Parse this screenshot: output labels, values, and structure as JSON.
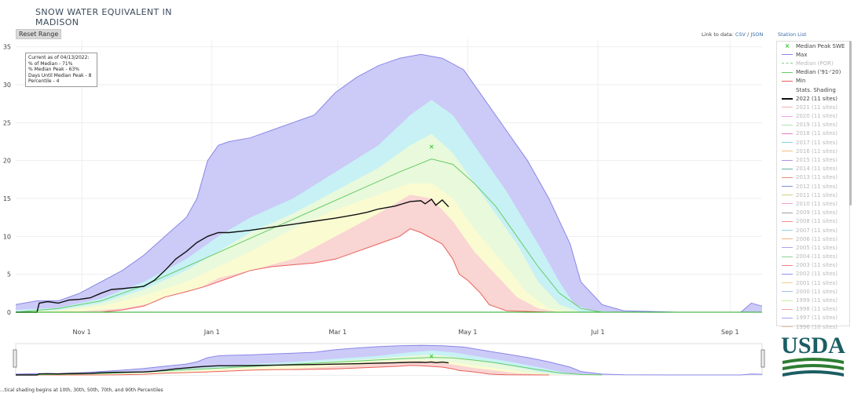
{
  "page": {
    "title_line1": "SNOW WATER EQUIVALENT IN",
    "title_line2": "MADISON",
    "reset_label": "Reset Range",
    "link_prefix": "Link to data:",
    "link_csv": "CSV",
    "link_sep": "/",
    "link_json": "JSON",
    "station_list": "Station List",
    "info": [
      "Current as of 04/13/2022:",
      "% of Median - 71%",
      "% Median Peak - 63%",
      "Days Until Median Peak - 8",
      "Percentile - 4"
    ],
    "footnote": "...tical shading begins at 10th, 30th, 50th, 70th, and 90th Percentiles",
    "logo_text": "USDA"
  },
  "legend": [
    {
      "label": "Median Peak SWE",
      "color": "#33cc33",
      "kind": "marker",
      "dim": false
    },
    {
      "label": "Max",
      "color": "#8a87e6",
      "kind": "line",
      "dim": false
    },
    {
      "label": "Median (POR)",
      "color": "#88cc88",
      "kind": "dash",
      "dim": true
    },
    {
      "label": "Median ('91-'20)",
      "color": "#66cc66",
      "kind": "line",
      "dim": false
    },
    {
      "label": "Min",
      "color": "#e8605a",
      "kind": "line",
      "dim": false
    },
    {
      "label": "Stats. Shading",
      "color": "#ffffff",
      "kind": "none",
      "dim": false
    },
    {
      "label": "2022 (11 sites)",
      "color": "#111111",
      "kind": "thick",
      "dim": false
    },
    {
      "label": "2021 (11 sites)",
      "color": "#f0b0b0",
      "kind": "line",
      "dim": true
    },
    {
      "label": "2020 (11 sites)",
      "color": "#f0a0f0",
      "kind": "line",
      "dim": true
    },
    {
      "label": "2019 (11 sites)",
      "color": "#b0e0b0",
      "kind": "line",
      "dim": true
    },
    {
      "label": "2018 (11 sites)",
      "color": "#e080c0",
      "kind": "line",
      "dim": true
    },
    {
      "label": "2017 (11 sites)",
      "color": "#80d0e0",
      "kind": "line",
      "dim": true
    },
    {
      "label": "2016 (11 sites)",
      "color": "#f0c080",
      "kind": "line",
      "dim": true
    },
    {
      "label": "2015 (11 sites)",
      "color": "#b090e0",
      "kind": "line",
      "dim": true
    },
    {
      "label": "2014 (11 sites)",
      "color": "#60b0a0",
      "kind": "line",
      "dim": true
    },
    {
      "label": "2013 (11 sites)",
      "color": "#e09070",
      "kind": "line",
      "dim": true
    },
    {
      "label": "2012 (11 sites)",
      "color": "#8090d0",
      "kind": "line",
      "dim": true
    },
    {
      "label": "2011 (11 sites)",
      "color": "#d0d080",
      "kind": "line",
      "dim": true
    },
    {
      "label": "2010 (11 sites)",
      "color": "#f0a0d0",
      "kind": "line",
      "dim": true
    },
    {
      "label": "2009 (11 sites)",
      "color": "#a0a0a0",
      "kind": "line",
      "dim": true
    },
    {
      "label": "2008 (11 sites)",
      "color": "#f09090",
      "kind": "line",
      "dim": true
    },
    {
      "label": "2007 (11 sites)",
      "color": "#90d0f0",
      "kind": "line",
      "dim": true
    },
    {
      "label": "2006 (11 sites)",
      "color": "#f0b080",
      "kind": "line",
      "dim": true
    },
    {
      "label": "2005 (11 sites)",
      "color": "#b0a0f0",
      "kind": "line",
      "dim": true
    },
    {
      "label": "2004 (11 sites)",
      "color": "#90d090",
      "kind": "line",
      "dim": true
    },
    {
      "label": "2003 (11 sites)",
      "color": "#f08080",
      "kind": "line",
      "dim": true
    },
    {
      "label": "2002 (11 sites)",
      "color": "#9090f0",
      "kind": "line",
      "dim": true
    },
    {
      "label": "2001 (11 sites)",
      "color": "#f0d090",
      "kind": "line",
      "dim": true
    },
    {
      "label": "2000 (11 sites)",
      "color": "#a0c0f0",
      "kind": "line",
      "dim": true
    },
    {
      "label": "1999 (11 sites)",
      "color": "#c0f0a0",
      "kind": "line",
      "dim": true
    },
    {
      "label": "1998 (11 sites)",
      "color": "#f0a0a0",
      "kind": "line",
      "dim": true
    },
    {
      "label": "1997 (11 sites)",
      "color": "#a0a0f0",
      "kind": "line",
      "dim": true
    },
    {
      "label": "1996 (10 sites)",
      "color": "#f0c0a0",
      "kind": "line",
      "dim": true
    }
  ],
  "chart_data": {
    "type": "area",
    "title": "SNOW WATER EQUIVALENT IN MADISON",
    "ylim": [
      0,
      36
    ],
    "yticks": [
      0,
      5,
      10,
      15,
      20,
      25,
      30,
      35
    ],
    "xlim": [
      0,
      350
    ],
    "x_unit": "days since Oct 1",
    "xticks": [
      {
        "day": 31,
        "label": "Nov 1"
      },
      {
        "day": 92,
        "label": "Jan 1"
      },
      {
        "day": 151,
        "label": "Mar 1"
      },
      {
        "day": 212,
        "label": "May 1"
      },
      {
        "day": 273,
        "label": "Jul 1"
      },
      {
        "day": 335,
        "label": "Sep 1"
      }
    ],
    "bands": [
      {
        "name": "Max",
        "fill": "#cccaf7",
        "stroke": "#8a87e6",
        "points": [
          [
            0,
            1
          ],
          [
            10,
            1.5
          ],
          [
            20,
            1.5
          ],
          [
            30,
            2.5
          ],
          [
            40,
            4
          ],
          [
            50,
            5.5
          ],
          [
            60,
            7.5
          ],
          [
            70,
            10
          ],
          [
            80,
            12.5
          ],
          [
            85,
            15
          ],
          [
            90,
            20
          ],
          [
            95,
            22
          ],
          [
            100,
            22.5
          ],
          [
            110,
            23
          ],
          [
            120,
            24
          ],
          [
            130,
            25
          ],
          [
            140,
            26
          ],
          [
            150,
            29
          ],
          [
            160,
            31
          ],
          [
            170,
            32.5
          ],
          [
            180,
            33.5
          ],
          [
            190,
            34
          ],
          [
            200,
            33.5
          ],
          [
            210,
            32
          ],
          [
            220,
            28
          ],
          [
            230,
            24
          ],
          [
            240,
            20
          ],
          [
            250,
            15
          ],
          [
            260,
            9
          ],
          [
            265,
            4
          ],
          [
            275,
            1
          ],
          [
            285,
            0.2
          ],
          [
            310,
            0
          ],
          [
            340,
            0
          ],
          [
            345,
            1.2
          ],
          [
            350,
            0.8
          ]
        ]
      },
      {
        "name": "90th",
        "fill": "#c7f1f5",
        "stroke": "none",
        "points": [
          [
            0,
            0.3
          ],
          [
            20,
            0.6
          ],
          [
            40,
            1.8
          ],
          [
            60,
            4
          ],
          [
            80,
            7
          ],
          [
            95,
            10
          ],
          [
            110,
            12.5
          ],
          [
            130,
            15
          ],
          [
            150,
            18.5
          ],
          [
            170,
            22
          ],
          [
            185,
            26
          ],
          [
            195,
            28
          ],
          [
            205,
            26
          ],
          [
            215,
            22
          ],
          [
            230,
            16
          ],
          [
            245,
            9
          ],
          [
            255,
            4
          ],
          [
            262,
            1
          ],
          [
            270,
            0.2
          ],
          [
            285,
            0
          ]
        ]
      },
      {
        "name": "70th",
        "fill": "#e9f9dc",
        "stroke": "none",
        "points": [
          [
            0,
            0.1
          ],
          [
            20,
            0.3
          ],
          [
            40,
            1.2
          ],
          [
            60,
            3
          ],
          [
            80,
            5.5
          ],
          [
            95,
            8
          ],
          [
            110,
            10.5
          ],
          [
            130,
            13
          ],
          [
            150,
            16
          ],
          [
            170,
            19
          ],
          [
            185,
            22
          ],
          [
            195,
            23.5
          ],
          [
            205,
            21
          ],
          [
            220,
            15
          ],
          [
            235,
            9
          ],
          [
            245,
            4
          ],
          [
            255,
            1
          ],
          [
            265,
            0
          ]
        ]
      },
      {
        "name": "Median",
        "fill": "#fbfbd2",
        "stroke": "none",
        "points": [
          [
            0,
            0
          ],
          [
            20,
            0.2
          ],
          [
            40,
            0.8
          ],
          [
            60,
            2.2
          ],
          [
            80,
            4
          ],
          [
            95,
            6
          ],
          [
            110,
            8
          ],
          [
            130,
            11
          ],
          [
            150,
            13.5
          ],
          [
            170,
            15.5
          ],
          [
            185,
            17
          ],
          [
            195,
            17
          ],
          [
            205,
            15
          ],
          [
            215,
            11
          ],
          [
            230,
            6
          ],
          [
            240,
            2.5
          ],
          [
            250,
            0.5
          ],
          [
            260,
            0
          ]
        ]
      },
      {
        "name": "30th",
        "fill": "#f9d5d3",
        "stroke": "none",
        "points": [
          [
            0,
            0
          ],
          [
            30,
            0.1
          ],
          [
            50,
            0.5
          ],
          [
            70,
            1.5
          ],
          [
            85,
            3
          ],
          [
            95,
            4.5
          ],
          [
            110,
            5.5
          ],
          [
            130,
            7
          ],
          [
            150,
            10
          ],
          [
            170,
            13
          ],
          [
            185,
            15.5
          ],
          [
            195,
            15
          ],
          [
            205,
            12
          ],
          [
            215,
            8
          ],
          [
            225,
            5
          ],
          [
            235,
            2
          ],
          [
            245,
            0.5
          ],
          [
            255,
            0
          ]
        ]
      },
      {
        "name": "Min",
        "fill": "#ffffff",
        "stroke": "#e8605a",
        "points": [
          [
            0,
            0
          ],
          [
            40,
            0
          ],
          [
            50,
            0.3
          ],
          [
            60,
            0.8
          ],
          [
            70,
            2
          ],
          [
            80,
            2.7
          ],
          [
            90,
            3.5
          ],
          [
            100,
            4.5
          ],
          [
            110,
            5.5
          ],
          [
            120,
            6
          ],
          [
            140,
            6.5
          ],
          [
            150,
            7
          ],
          [
            160,
            8
          ],
          [
            170,
            9
          ],
          [
            180,
            10
          ],
          [
            185,
            11
          ],
          [
            190,
            10.5
          ],
          [
            200,
            9
          ],
          [
            205,
            7
          ],
          [
            208,
            5
          ],
          [
            212,
            4.2
          ],
          [
            218,
            2.5
          ],
          [
            222,
            1
          ],
          [
            230,
            0.2
          ],
          [
            250,
            0
          ]
        ]
      }
    ],
    "series": [
      {
        "name": "Median ('91-'20)",
        "color": "#66cc66",
        "points": [
          [
            0,
            0
          ],
          [
            20,
            0.5
          ],
          [
            40,
            1.5
          ],
          [
            60,
            3.5
          ],
          [
            80,
            6
          ],
          [
            100,
            8.5
          ],
          [
            120,
            11
          ],
          [
            140,
            13.5
          ],
          [
            160,
            16
          ],
          [
            180,
            18.5
          ],
          [
            195,
            20.2
          ],
          [
            205,
            19.5
          ],
          [
            215,
            17
          ],
          [
            225,
            14
          ],
          [
            235,
            10
          ],
          [
            245,
            6
          ],
          [
            255,
            2.5
          ],
          [
            265,
            0.5
          ],
          [
            275,
            0
          ]
        ]
      },
      {
        "name": "2022 (11 sites)",
        "color": "#111111",
        "points": [
          [
            0,
            0
          ],
          [
            10,
            0
          ],
          [
            11,
            1.2
          ],
          [
            15,
            1.4
          ],
          [
            20,
            1.2
          ],
          [
            25,
            1.6
          ],
          [
            30,
            1.7
          ],
          [
            35,
            1.9
          ],
          [
            40,
            2.5
          ],
          [
            45,
            3
          ],
          [
            50,
            3.1
          ],
          [
            60,
            3.4
          ],
          [
            65,
            4.2
          ],
          [
            70,
            5.5
          ],
          [
            75,
            7
          ],
          [
            80,
            8
          ],
          [
            85,
            9.2
          ],
          [
            90,
            10
          ],
          [
            95,
            10.5
          ],
          [
            100,
            10.5
          ],
          [
            110,
            10.8
          ],
          [
            120,
            11.2
          ],
          [
            130,
            11.6
          ],
          [
            140,
            12
          ],
          [
            150,
            12.4
          ],
          [
            160,
            12.9
          ],
          [
            165,
            13.2
          ],
          [
            170,
            13.6
          ],
          [
            178,
            14
          ],
          [
            185,
            14.6
          ],
          [
            190,
            14.7
          ],
          [
            192,
            14.3
          ],
          [
            195,
            14.9
          ],
          [
            197,
            14.1
          ],
          [
            200,
            14.8
          ],
          [
            203,
            13.9
          ]
        ]
      }
    ],
    "peak_marker": {
      "name": "Median Peak SWE",
      "x": 195,
      "y": 21.9,
      "color": "#33cc33"
    }
  }
}
